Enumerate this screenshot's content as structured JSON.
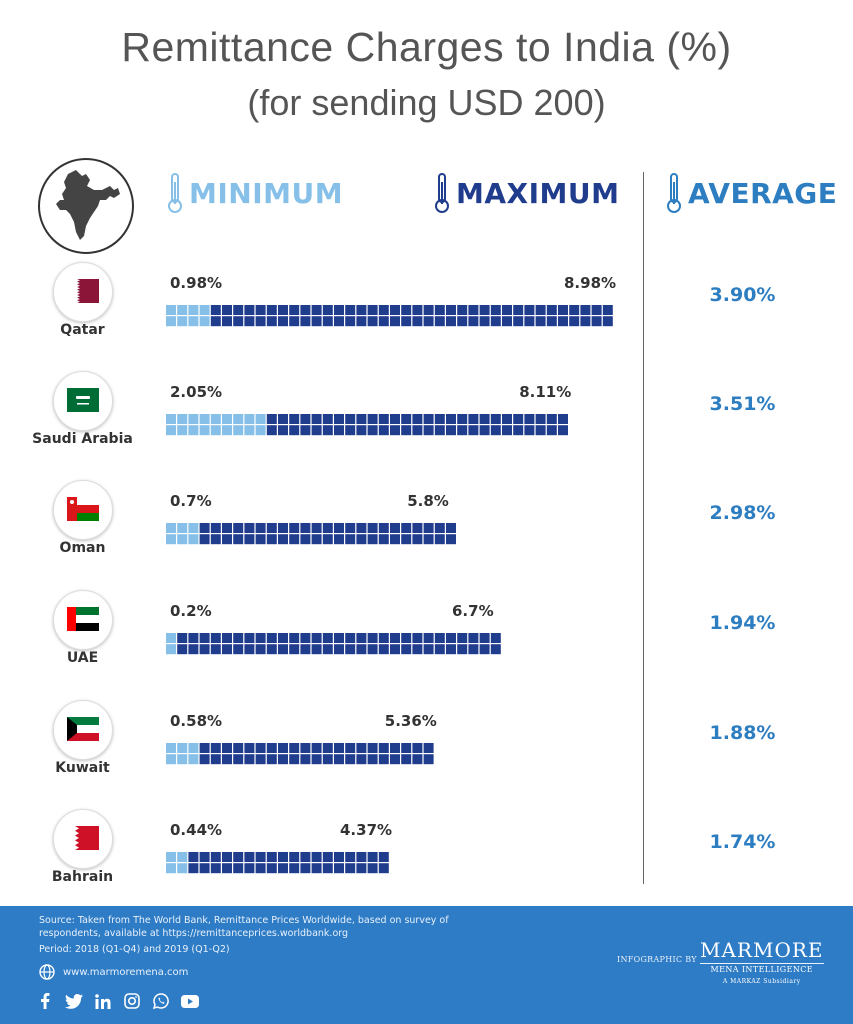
{
  "header": {
    "title": "Remittance Charges to India (%)",
    "subtitle": "(for sending USD 200)"
  },
  "legend": {
    "minimum": "MINIMUM",
    "maximum": "MAXIMUM",
    "average": "AVERAGE"
  },
  "colors": {
    "minimum": "#86c0e8",
    "maximum": "#203c8c",
    "average": "#2d7dc1",
    "footer": "#2e7cc6"
  },
  "chart_data": {
    "type": "bar",
    "categories": [
      "Qatar",
      "Saudi Arabia",
      "Oman",
      "UAE",
      "Kuwait",
      "Bahrain"
    ],
    "series": [
      {
        "name": "MINIMUM",
        "values": [
          0.98,
          2.05,
          0.7,
          0.2,
          0.58,
          0.44
        ]
      },
      {
        "name": "MAXIMUM",
        "values": [
          8.98,
          8.11,
          5.8,
          6.7,
          5.36,
          4.37
        ]
      },
      {
        "name": "AVERAGE",
        "values": [
          3.9,
          3.51,
          2.98,
          1.94,
          1.88,
          1.74
        ]
      }
    ]
  },
  "rows": [
    {
      "country": "Qatar",
      "min_label": "0.98%",
      "max_label": "8.98%",
      "avg_label": "3.90%",
      "flag": "qatar-flag-icon"
    },
    {
      "country": "Saudi Arabia",
      "min_label": "2.05%",
      "max_label": "8.11%",
      "avg_label": "3.51%",
      "flag": "saudi-arabia-flag-icon"
    },
    {
      "country": "Oman",
      "min_label": "0.7%",
      "max_label": "5.8%",
      "avg_label": "2.98%",
      "flag": "oman-flag-icon"
    },
    {
      "country": "UAE",
      "min_label": "0.2%",
      "max_label": "6.7%",
      "avg_label": "1.94%",
      "flag": "uae-flag-icon"
    },
    {
      "country": "Kuwait",
      "min_label": "0.58%",
      "max_label": "5.36%",
      "avg_label": "1.88%",
      "flag": "kuwait-flag-icon"
    },
    {
      "country": "Bahrain",
      "min_label": "0.44%",
      "max_label": "4.37%",
      "avg_label": "1.74%",
      "flag": "bahrain-flag-icon"
    }
  ],
  "footer": {
    "source": "Source: Taken from The World Bank, Remittance Prices Worldwide, based on survey of respondents, available at  https://remittanceprices.worldbank.org",
    "period": "Period: 2018 (Q1-Q4) and 2019 (Q1-Q2)",
    "website": "www.marmoremena.com",
    "infographic_by": "INFOGRAPHIC BY",
    "logo": "MARMORE",
    "logo_sub": "MENA INTELLIGENCE",
    "logo_sub2": "A MARKAZ Subsidiary",
    "socials": [
      "facebook-icon",
      "twitter-icon",
      "linkedin-icon",
      "instagram-icon",
      "whatsapp-icon",
      "youtube-icon"
    ]
  }
}
